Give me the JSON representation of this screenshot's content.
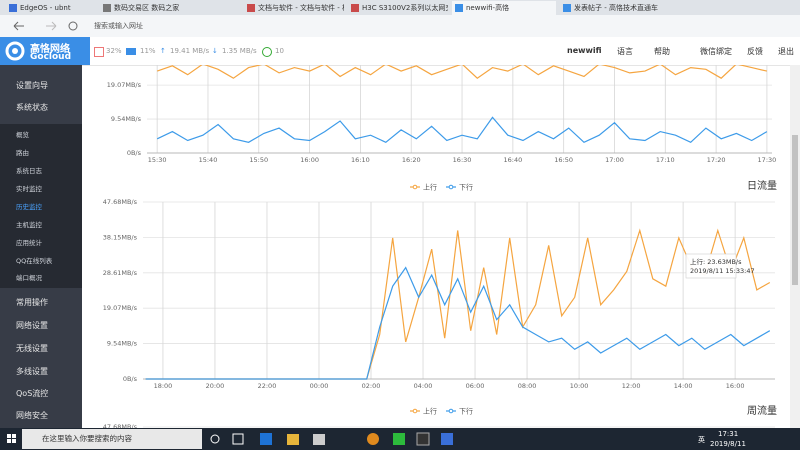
{
  "browser": {
    "tabs": [
      "EdgeOS - ubnt",
      "数码交易区 数码之家",
      "文档与软件 - 文档与软件 - 栏",
      "H3C S3100V2系列以太网交",
      "newwifi-高恪",
      "发表帖子 - 高恪技术直通车"
    ],
    "address": "搜索或输入网址"
  },
  "header": {
    "logo": "高恪网络",
    "logo_sub": "Gocloud",
    "cpu": "32%",
    "ram": "11%",
    "up": "19.41 MB/s",
    "down": "1.35 MB/s",
    "connections": "10",
    "device": "newwifi",
    "nav": [
      "语言",
      "帮助",
      "微信绑定",
      "反馈",
      "退出"
    ]
  },
  "sidebar": {
    "top": [
      "设置向导",
      "系统状态"
    ],
    "sub": [
      "概览",
      "路由",
      "系统日志",
      "实时监控",
      "历史监控",
      "主机监控",
      "应用统计",
      "QQ在线列表",
      "端口概况"
    ],
    "bottom": [
      "常用操作",
      "网络设置",
      "无线设置",
      "多线设置",
      "QoS流控",
      "网络安全"
    ]
  },
  "chart_data": [
    {
      "type": "line",
      "x": [
        930,
        933,
        936,
        939,
        942,
        945,
        948,
        951,
        954,
        957,
        960,
        963,
        966,
        969,
        972,
        975,
        978,
        981,
        984,
        987,
        990,
        993,
        996,
        999,
        1002,
        1005,
        1008,
        1011,
        1014,
        1017,
        1020,
        1023,
        1026,
        1029,
        1032,
        1035,
        1038,
        1041,
        1044,
        1047,
        1050
      ],
      "series": [
        {
          "color": "#f5a540",
          "values": [
            23,
            24.5,
            22,
            25,
            23.5,
            21,
            24,
            25,
            22.5,
            24,
            23,
            25,
            21.5,
            24,
            22,
            25,
            23,
            24.5,
            22,
            23.5,
            25,
            21,
            24,
            23,
            25,
            22,
            24.5,
            23,
            21.5,
            25,
            24,
            22.5,
            23,
            25,
            22,
            24,
            23.5,
            21,
            25,
            24,
            23
          ]
        },
        {
          "color": "#3d9be9",
          "values": [
            4,
            6,
            3.5,
            5,
            8,
            4,
            3,
            5.5,
            7,
            4,
            3.5,
            6,
            9,
            4,
            5,
            3,
            6.5,
            4,
            7.5,
            3.5,
            5,
            4,
            10,
            5,
            3.5,
            6,
            4,
            7,
            3,
            5,
            8.5,
            4,
            3.5,
            6,
            5,
            3,
            7,
            4,
            5.5,
            3.5,
            6
          ]
        }
      ],
      "xlim": [
        928,
        1051
      ],
      "xticks": [
        {
          "value": 930,
          "label": "15:30"
        },
        {
          "value": 940,
          "label": "15:40"
        },
        {
          "value": 950,
          "label": "15:50"
        },
        {
          "value": 960,
          "label": "16:00"
        },
        {
          "value": 970,
          "label": "16:10"
        },
        {
          "value": 980,
          "label": "16:20"
        },
        {
          "value": 990,
          "label": "16:30"
        },
        {
          "value": 1000,
          "label": "16:40"
        },
        {
          "value": 1010,
          "label": "16:50"
        },
        {
          "value": 1020,
          "label": "17:00"
        },
        {
          "value": 1030,
          "label": "17:10"
        },
        {
          "value": 1040,
          "label": "17:20"
        },
        {
          "value": 1050,
          "label": "17:30"
        }
      ],
      "ylim": [
        0,
        25
      ],
      "yticks": [
        {
          "value": 0,
          "label": "0B/s"
        },
        {
          "value": 9.54,
          "label": "9.54MB/s"
        },
        {
          "value": 19.07,
          "label": "19.07MB/s"
        }
      ],
      "grid": true
    },
    {
      "type": "line",
      "title": "日流量",
      "x": [
        1040,
        1070,
        1100,
        1130,
        1160,
        1190,
        1220,
        1250,
        1280,
        1310,
        1340,
        1370,
        1400,
        1430,
        1460,
        1490,
        1520,
        1550,
        1580,
        1610,
        1640,
        1670,
        1700,
        1730,
        1760,
        1790,
        1820,
        1850,
        1880,
        1910,
        1940,
        1970,
        2000,
        2030,
        2060,
        2090,
        2120,
        2150,
        2180,
        2210,
        2240,
        2270,
        2300,
        2330,
        2360,
        2390,
        2420,
        2450,
        2480
      ],
      "series": [
        {
          "name": "上行",
          "color": "#f5a540",
          "values": [
            0,
            0,
            0,
            0,
            0,
            0,
            0,
            0,
            0,
            0,
            0,
            0,
            0,
            0,
            0,
            0,
            0,
            0,
            12,
            38,
            10,
            22,
            35,
            11,
            40,
            13,
            30,
            12,
            38,
            14,
            20,
            36,
            17,
            22,
            38,
            20,
            24,
            29,
            40,
            27,
            25,
            38,
            30,
            28,
            40,
            29,
            38,
            24,
            26
          ]
        },
        {
          "name": "下行",
          "color": "#3d9be9",
          "values": [
            0,
            0,
            0,
            0,
            0,
            0,
            0,
            0,
            0,
            0,
            0,
            0,
            0,
            0,
            0,
            0,
            0,
            0,
            14,
            25,
            30,
            22,
            28,
            20,
            27,
            18,
            25,
            16,
            20,
            14,
            12,
            10,
            11,
            8,
            10,
            7,
            9,
            11,
            8,
            10,
            12,
            9,
            11,
            8,
            10,
            12,
            9,
            11,
            13
          ]
        }
      ],
      "xlim": [
        1034,
        2492
      ],
      "xticks": [
        {
          "value": 1080,
          "label": "18:00"
        },
        {
          "value": 1200,
          "label": "20:00"
        },
        {
          "value": 1320,
          "label": "22:00"
        },
        {
          "value": 1440,
          "label": "00:00"
        },
        {
          "value": 1560,
          "label": "02:00"
        },
        {
          "value": 1680,
          "label": "04:00"
        },
        {
          "value": 1800,
          "label": "06:00"
        },
        {
          "value": 1920,
          "label": "08:00"
        },
        {
          "value": 2040,
          "label": "10:00"
        },
        {
          "value": 2160,
          "label": "12:00"
        },
        {
          "value": 2280,
          "label": "14:00"
        },
        {
          "value": 2400,
          "label": "16:00"
        }
      ],
      "ylim": [
        0,
        47.68
      ],
      "yticks": [
        {
          "value": 0,
          "label": "0B/s"
        },
        {
          "value": 9.54,
          "label": "9.54MB/s"
        },
        {
          "value": 19.07,
          "label": "19.07MB/s"
        },
        {
          "value": 28.61,
          "label": "28.61MB/s"
        },
        {
          "value": 38.15,
          "label": "38.15MB/s"
        },
        {
          "value": 47.68,
          "label": "47.68MB/s"
        }
      ],
      "grid": true,
      "tooltip": {
        "value": "上行: 23.63MB/s",
        "time": "2019/8/11 15:33:47"
      }
    },
    {
      "type": "line",
      "title": "周流量",
      "series": [
        {
          "name": "上行",
          "color": "#f5a540"
        },
        {
          "name": "下行",
          "color": "#3d9be9"
        }
      ],
      "ylim": [
        0,
        47.68
      ],
      "yticks": [
        {
          "value": 47.68,
          "label": "47.68MB/s"
        }
      ],
      "grid": true
    }
  ],
  "taskbar": {
    "search": "在这里输入你要搜索的内容",
    "ime": "英",
    "time": "17:31",
    "date": "2019/8/11"
  }
}
